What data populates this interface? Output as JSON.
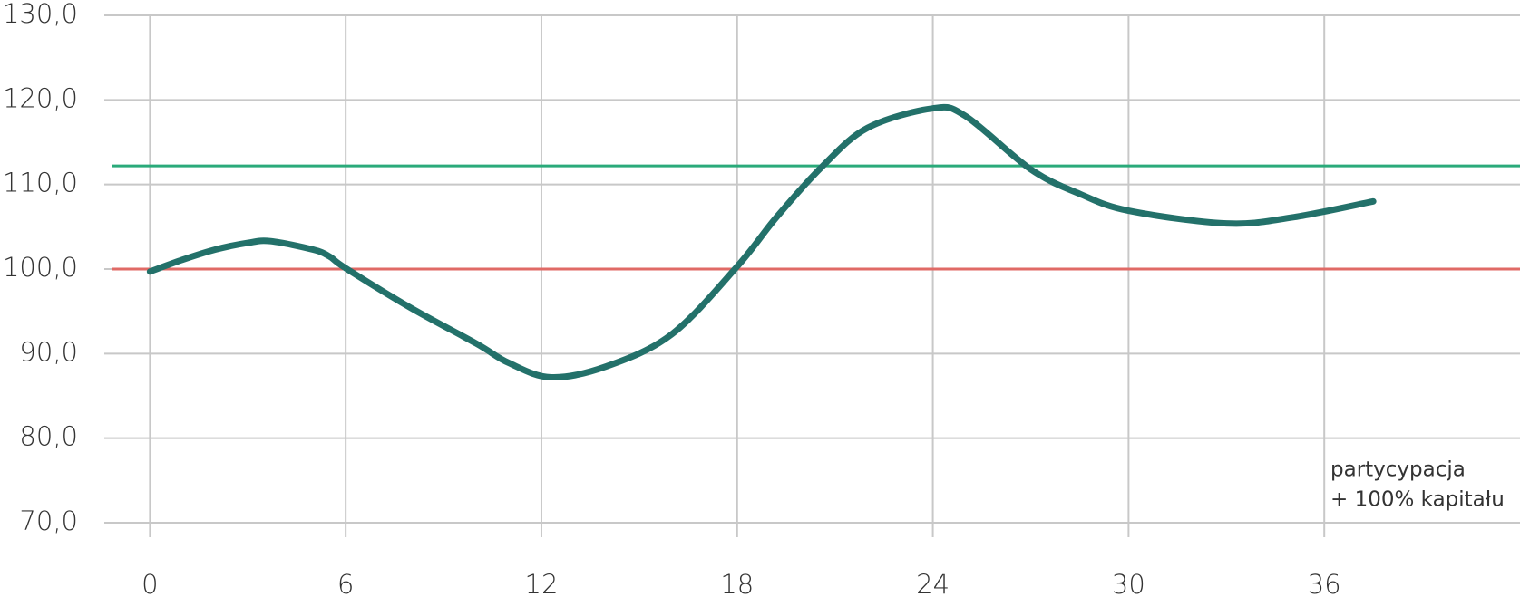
{
  "chart_data": {
    "type": "line",
    "x": [
      0,
      1,
      2,
      3,
      3.7,
      5,
      5.5,
      6,
      8,
      10,
      11,
      12.3,
      14,
      16,
      18,
      19.2,
      20.6,
      22,
      24,
      25,
      27,
      28.5,
      30,
      33,
      35,
      37.5
    ],
    "series": [
      {
        "color": "#23716a",
        "values": [
          99.7,
          101.1,
          102.3,
          103.1,
          103.3,
          102.3,
          101.5,
          100.1,
          95.4,
          91.2,
          88.9,
          87.2,
          88.5,
          92.3,
          100.3,
          106.1,
          112.1,
          116.7,
          119.0,
          118.1,
          111.8,
          108.9,
          106.9,
          105.4,
          106.1,
          108.0
        ]
      }
    ],
    "xlim": [
      -1.4,
      42
    ],
    "xticks": [
      0,
      6,
      12,
      18,
      24,
      30,
      36
    ],
    "ylim": [
      70,
      130
    ],
    "yticks": [
      {
        "value": 70,
        "label": "70,0"
      },
      {
        "value": 80,
        "label": "80,0"
      },
      {
        "value": 90,
        "label": "90,0"
      },
      {
        "value": 100,
        "label": "100,0"
      },
      {
        "value": 110,
        "label": "110,0"
      },
      {
        "value": 120,
        "label": "120,0"
      },
      {
        "value": 130,
        "label": "130,0"
      }
    ],
    "grid": true,
    "reference_lines": [
      {
        "value": 112.2,
        "color": "#2aaa7a"
      },
      {
        "value": 100,
        "color": "#e06a66"
      }
    ],
    "annotation": [
      "partycypacja",
      "+ 100% kapitału"
    ]
  }
}
